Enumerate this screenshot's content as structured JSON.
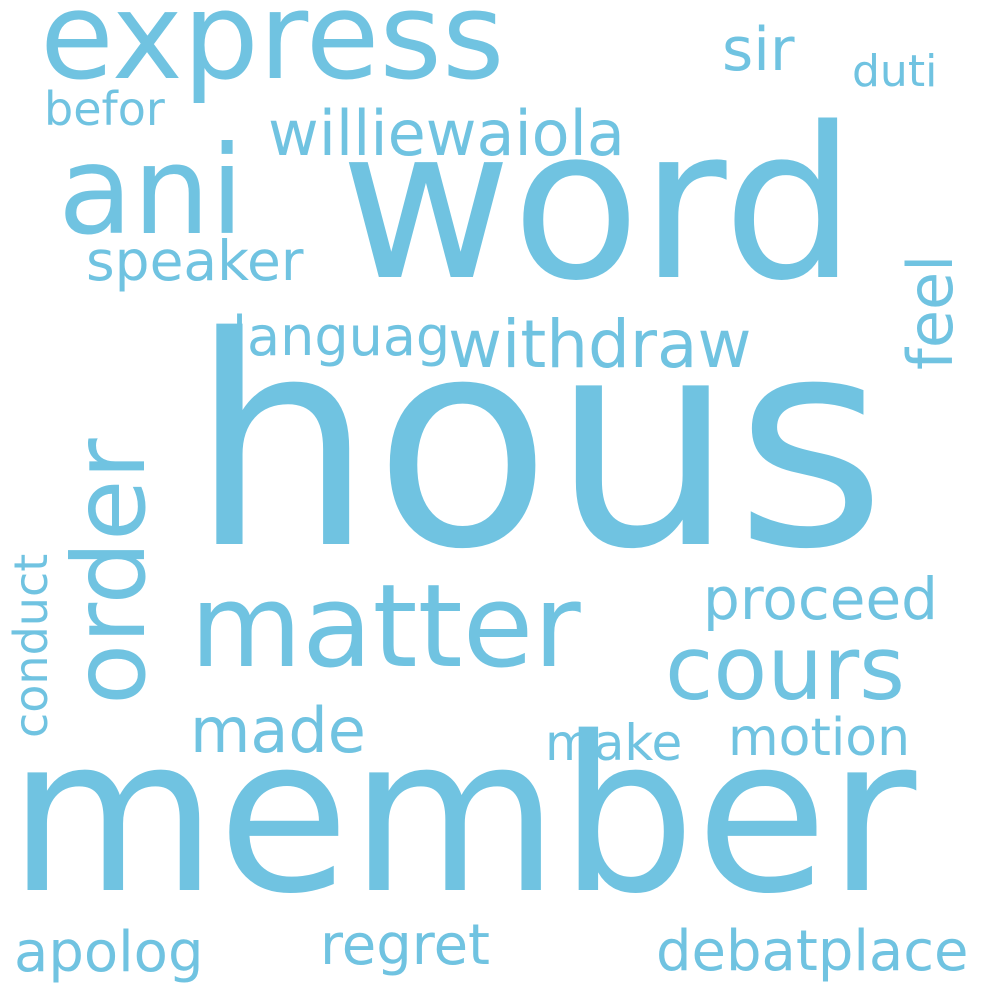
{
  "word_color": "#70c3e1",
  "background_color": "#ffffff",
  "words": [
    "hous",
    "member",
    "word",
    "order",
    "ani",
    "express",
    "matter",
    "cours",
    "withdraw",
    "williewaiola",
    "proceed",
    "feel",
    "speaker",
    "languag",
    "made",
    "motion",
    "make",
    "conduct",
    "sir",
    "duti",
    "befor",
    "apolog",
    "regret",
    "debatplace"
  ]
}
